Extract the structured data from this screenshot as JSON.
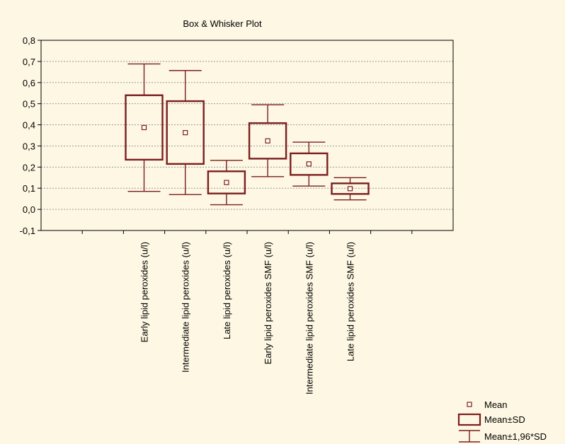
{
  "chart_data": {
    "type": "box",
    "title": "Box & Whisker Plot",
    "xlabel": "",
    "ylabel": "",
    "ylim": [
      -0.1,
      0.8
    ],
    "yticks": [
      -0.1,
      0.0,
      0.1,
      0.2,
      0.3,
      0.4,
      0.5,
      0.6,
      0.7,
      0.8
    ],
    "ytick_labels": [
      "-0,1",
      "0,0",
      "0,1",
      "0,2",
      "0,3",
      "0,4",
      "0,5",
      "0,6",
      "0,7",
      "0,8"
    ],
    "grid": "horizontal",
    "legend_position": "bottom-right",
    "colors": {
      "box": "#7b1e1e",
      "background": "#fdf7e3",
      "grid": "#9a9a9a"
    },
    "legend": [
      {
        "symbol": "mean-marker",
        "label": "Mean"
      },
      {
        "symbol": "box",
        "label": "Mean±SD"
      },
      {
        "symbol": "whisker",
        "label": "Mean±1,96*SD"
      }
    ],
    "categories": [
      "Early lipid peroxides (u/l)",
      "Intermediate lipid peroxides (u/l)",
      "Late lipid peroxides (u/l)",
      "Early lipid peroxides SMF (u/l)",
      "Intermediate lipid peroxides SMF (u/l)",
      "Late lipid peroxides SMF (u/l)"
    ],
    "mean": [
      0.387,
      0.363,
      0.127,
      0.324,
      0.215,
      0.098
    ],
    "box_low": [
      0.235,
      0.215,
      0.075,
      0.24,
      0.163,
      0.073
    ],
    "box_high": [
      0.54,
      0.512,
      0.18,
      0.408,
      0.265,
      0.123
    ],
    "whisker_low": [
      0.085,
      0.07,
      0.022,
      0.155,
      0.11,
      0.045
    ],
    "whisker_high": [
      0.688,
      0.657,
      0.232,
      0.495,
      0.318,
      0.15
    ]
  }
}
